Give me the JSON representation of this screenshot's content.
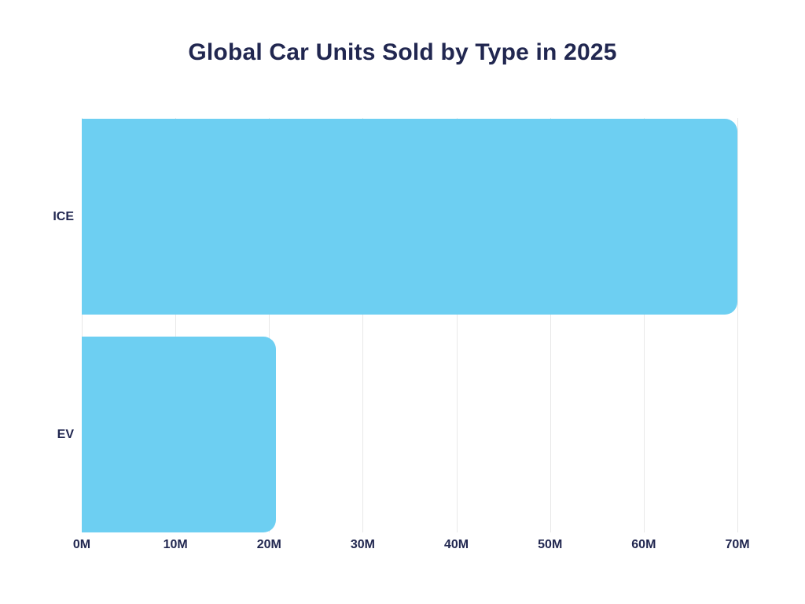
{
  "title": "Global Car Units Sold by Type in 2025",
  "chart_data": {
    "type": "bar",
    "orientation": "horizontal",
    "title": "Global Car Units Sold by Type in 2025",
    "categories": [
      "ICE",
      "EV"
    ],
    "values": [
      70,
      20.7
    ],
    "unit": "M",
    "xlabel": "",
    "ylabel": "",
    "xlim": [
      0,
      70
    ],
    "xticks": [
      0,
      10,
      20,
      30,
      40,
      50,
      60,
      70
    ],
    "xtick_labels": [
      "0M",
      "10M",
      "20M",
      "30M",
      "40M",
      "50M",
      "60M",
      "70M"
    ],
    "grid": true,
    "legend": false,
    "bar_color": "#6dcff2",
    "text_color": "#212750",
    "gridline_color": "#e8e8e8",
    "background_color": "#ffffff"
  }
}
